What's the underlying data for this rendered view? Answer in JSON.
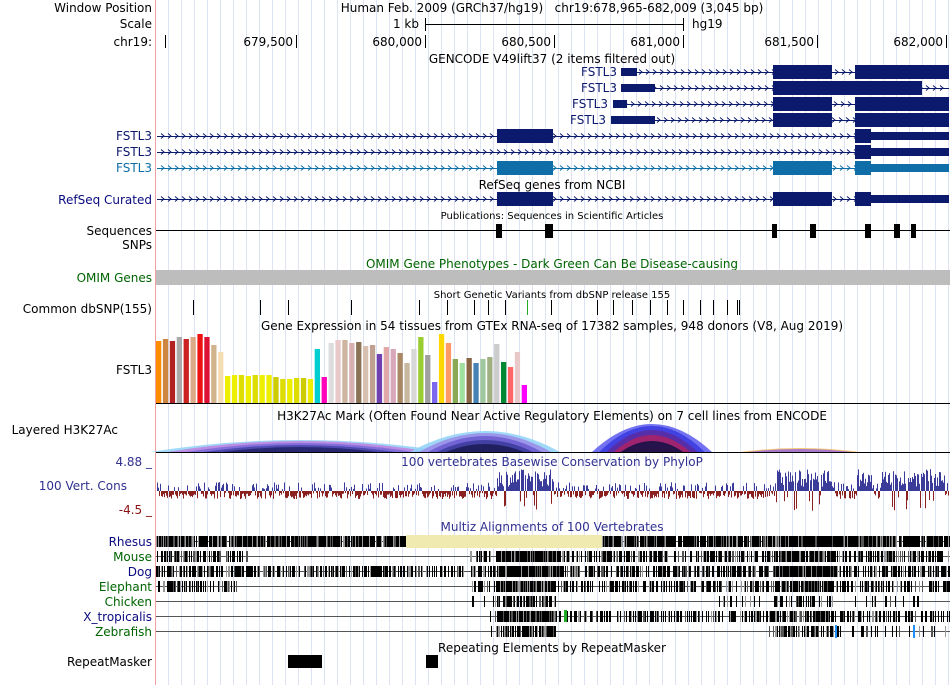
{
  "header": {
    "window_position_label": "Window Position",
    "scale_label": "Scale",
    "chrom_label": "chr19:",
    "position_text": "Human Feb. 2009 (GRCh37/hg19)   chr19:678,965-682,009 (3,045 bp)",
    "scale_text": "1 kb",
    "assembly": "hg19",
    "ruler_ticks": [
      "679,500",
      "680,000",
      "680,500",
      "681,000",
      "681,500",
      "682,000"
    ]
  },
  "tracks": {
    "gencode": {
      "title": "GENCODE V49lift37 (2 items filtered out)",
      "gene": "FSTL3",
      "upper_labels": [
        "FSTL3",
        "FSTL3",
        "FSTL3",
        "FSTL3"
      ],
      "side_labels": [
        "FSTL3",
        "FSTL3",
        "FSTL3"
      ]
    },
    "refseq": {
      "label": "RefSeq Curated",
      "title": "RefSeq genes from NCBI"
    },
    "publications": {
      "title": "Publications: Sequences in Scientific Articles"
    },
    "sequences": {
      "label": "Sequences"
    },
    "snps": {
      "label": "SNPs"
    },
    "omim": {
      "label": "OMIM Genes",
      "title": "OMIM Gene Phenotypes - Dark Green Can Be Disease-causing"
    },
    "dbsnp": {
      "label": "Common dbSNP(155)",
      "title": "Short Genetic Variants from dbSNP release 155"
    },
    "gtex": {
      "label": "FSTL3",
      "title": "Gene Expression in 54 tissues from GTEx RNA-seq of 17382 samples, 948 donors (V8, Aug 2019)"
    },
    "h3k27ac": {
      "label": "Layered H3K27Ac",
      "title": "H3K27Ac Mark (Often Found Near Active Regulatory Elements) on 7 cell lines from ENCODE"
    },
    "conservation": {
      "label": "100 Vert. Cons",
      "max_label": "4.88 _",
      "min_label": "-4.5 _",
      "title": "100 vertebrates Basewise Conservation by PhyloP"
    },
    "multiz": {
      "title": "Multiz Alignments of 100 Vertebrates",
      "species": [
        "Rhesus",
        "Mouse",
        "Dog",
        "Elephant",
        "Chicken",
        "X_tropicalis",
        "Zebrafish"
      ]
    },
    "repeatmasker": {
      "label": "RepeatMasker",
      "title": "Repeating Elements by RepeatMasker"
    }
  },
  "chart_data": {
    "type": "bar",
    "title": "Gene Expression in 54 tissues from GTEx RNA-seq of 17382 samples, 948 donors (V8, Aug 2019)",
    "gene": "FSTL3",
    "values": [
      62,
      64,
      62,
      66,
      64,
      66,
      69,
      66,
      58,
      51,
      27,
      28,
      28,
      27,
      28,
      28,
      28,
      26,
      24,
      24,
      25,
      25,
      24,
      54,
      26,
      60,
      63,
      63,
      60,
      61,
      57,
      58,
      49,
      56,
      54,
      50,
      40,
      54,
      66,
      48,
      21,
      69,
      60,
      44,
      40,
      45,
      40,
      44,
      46,
      59,
      41,
      36,
      51,
      18
    ],
    "colors": [
      "#FF8C00",
      "#CD853F",
      "#B22222",
      "#AAAAAA",
      "#CC2222",
      "#DDAA88",
      "#EE1111",
      "#DD1133",
      "#D2B48C",
      "#F5DEB3",
      "#EEEE00",
      "#EEEE00",
      "#DDDD00",
      "#EEEE00",
      "#DDDD00",
      "#EEEE00",
      "#EEEE00",
      "#CCCC00",
      "#DDDD00",
      "#EEEE00",
      "#DDDD00",
      "#CCCC00",
      "#EEEE00",
      "#00CED1",
      "#FF00BB",
      "#DDDDDD",
      "#E8C8C8",
      "#CDB5A0",
      "#D8B0B0",
      "#8B7355",
      "#D8C0B0",
      "#C0A090",
      "#7040B0",
      "#E0A8A8",
      "#D8A8B8",
      "#AA8866",
      "#C8B8A0",
      "#D8D8D8",
      "#9ACD32",
      "#A0A0A0",
      "#7B68EE",
      "#FFD700",
      "#FF9966",
      "#88AA55",
      "#A0E0A0",
      "#886644",
      "#4682B4",
      "#A0C8A0",
      "#A0B080",
      "#CCCCCC",
      "#008833",
      "#FF6666",
      "#E8C8C8",
      "#FF00FF"
    ],
    "ylim": [
      0,
      70
    ],
    "xlabel": "",
    "ylabel": ""
  }
}
